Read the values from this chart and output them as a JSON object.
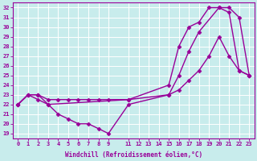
{
  "xlabel": "Windchill (Refroidissement éolien,°C)",
  "background_color": "#c8ecec",
  "grid_color": "#b0d8d8",
  "line_color": "#990099",
  "xlim": [
    -0.5,
    23.5
  ],
  "ylim": [
    18.5,
    32.5
  ],
  "xticks": [
    0,
    1,
    2,
    3,
    4,
    5,
    6,
    7,
    8,
    9,
    11,
    12,
    13,
    14,
    15,
    16,
    17,
    18,
    19,
    20,
    21,
    22,
    23
  ],
  "yticks": [
    19,
    20,
    21,
    22,
    23,
    24,
    25,
    26,
    27,
    28,
    29,
    30,
    31,
    32
  ],
  "line1_x": [
    0,
    1,
    2,
    3,
    4,
    5,
    6,
    7,
    8,
    9,
    11,
    15,
    16,
    17,
    18,
    19,
    20,
    21,
    22,
    23
  ],
  "line1_y": [
    22,
    23,
    22.5,
    22,
    21,
    20.5,
    20,
    20,
    19.5,
    19,
    22,
    23,
    23.5,
    24.5,
    25.5,
    27,
    29,
    27,
    25.5,
    25
  ],
  "line2_x": [
    0,
    1,
    2,
    3,
    4,
    5,
    6,
    7,
    8,
    9,
    11,
    15,
    16,
    17,
    18,
    20,
    21,
    22,
    23
  ],
  "line2_y": [
    22,
    23,
    23,
    22.5,
    22.5,
    22.5,
    22.5,
    22.5,
    22.5,
    22.5,
    22.5,
    23,
    25,
    27.5,
    29.5,
    32,
    32,
    31,
    25
  ],
  "line3_x": [
    0,
    1,
    2,
    3,
    11,
    15,
    16,
    17,
    18,
    19,
    20,
    21,
    22,
    23
  ],
  "line3_y": [
    22,
    23,
    23,
    22,
    22.5,
    24,
    28,
    30,
    30.5,
    32,
    32,
    31.5,
    25.5,
    25
  ],
  "marker": "D",
  "markersize": 2.5,
  "linewidth": 1.0,
  "tick_fontsize": 5,
  "xlabel_fontsize": 5.5
}
